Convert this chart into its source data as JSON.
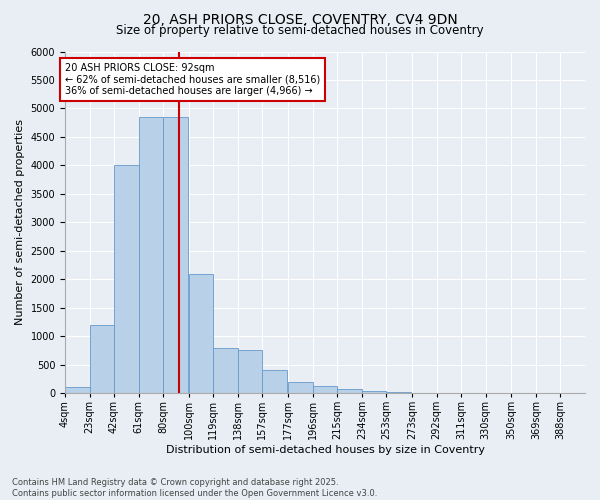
{
  "title_line1": "20, ASH PRIORS CLOSE, COVENTRY, CV4 9DN",
  "title_line2": "Size of property relative to semi-detached houses in Coventry",
  "xlabel": "Distribution of semi-detached houses by size in Coventry",
  "ylabel": "Number of semi-detached properties",
  "footnote_line1": "Contains HM Land Registry data © Crown copyright and database right 2025.",
  "footnote_line2": "Contains public sector information licensed under the Open Government Licence v3.0.",
  "annotation_line1": "20 ASH PRIORS CLOSE: 92sqm",
  "annotation_line2": "← 62% of semi-detached houses are smaller (8,516)",
  "annotation_line3": "36% of semi-detached houses are larger (4,966) →",
  "property_size": 92,
  "bar_color": "#b8d0e8",
  "bar_edge_color": "#6699cc",
  "vline_color": "#cc0000",
  "categories": [
    "4sqm",
    "23sqm",
    "42sqm",
    "61sqm",
    "80sqm",
    "100sqm",
    "119sqm",
    "138sqm",
    "157sqm",
    "177sqm",
    "196sqm",
    "215sqm",
    "234sqm",
    "253sqm",
    "273sqm",
    "292sqm",
    "311sqm",
    "330sqm",
    "350sqm",
    "369sqm",
    "388sqm"
  ],
  "bin_left": [
    4,
    23,
    42,
    61,
    80,
    100,
    119,
    138,
    157,
    177,
    196,
    215,
    234,
    253,
    273,
    292,
    311,
    330,
    350,
    369,
    388
  ],
  "bin_width": 19,
  "values": [
    100,
    1200,
    4000,
    4850,
    4850,
    2100,
    800,
    750,
    400,
    200,
    130,
    80,
    40,
    15,
    5,
    3,
    2,
    1,
    0,
    0,
    0
  ],
  "ylim": [
    0,
    6000
  ],
  "yticks": [
    0,
    500,
    1000,
    1500,
    2000,
    2500,
    3000,
    3500,
    4000,
    4500,
    5000,
    5500,
    6000
  ],
  "background_color": "#e8eef4",
  "annotation_box_facecolor": "#ffffff",
  "annotation_box_edgecolor": "#cc0000",
  "title1_fontsize": 10,
  "title2_fontsize": 8.5,
  "axis_label_fontsize": 8,
  "tick_fontsize": 7,
  "footnote_fontsize": 6
}
